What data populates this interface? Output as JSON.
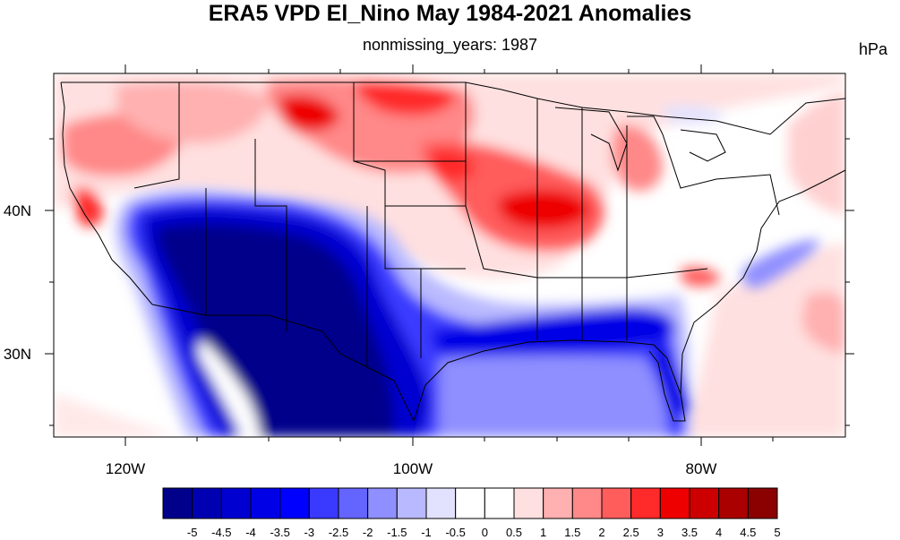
{
  "title": "ERA5 VPD El_Nino May 1984-2021 Anomalies",
  "subtitle": "nonmissing_years: 1987",
  "units": "hPa",
  "map": {
    "region": "Contiguous United States",
    "projection": "lat-lon",
    "lon_range": [
      -130,
      -72.5
    ],
    "lat_range": [
      24.5,
      49.5
    ],
    "x_tick_labels": [
      "120W",
      "100W",
      "80W"
    ],
    "y_tick_labels": [
      "40N",
      "30N"
    ]
  },
  "colorbar": {
    "levels": [
      "-5",
      "-4.5",
      "-4",
      "-3.5",
      "-3",
      "-2.5",
      "-2",
      "-1.5",
      "-1",
      "-0.5",
      "0",
      "0.5",
      "1",
      "1.5",
      "2",
      "2.5",
      "3",
      "3.5",
      "4",
      "4.5",
      "5"
    ],
    "colors": [
      "#00008b",
      "#0000b3",
      "#0000d0",
      "#0000e6",
      "#0000ff",
      "#3a3aff",
      "#6464ff",
      "#8f8fff",
      "#b9b9ff",
      "#e2e2ff",
      "#ffffff",
      "#ffffff",
      "#ffe0e0",
      "#ffb0b0",
      "#ff8888",
      "#ff5c5c",
      "#ff2a2a",
      "#ee0000",
      "#cc0000",
      "#aa0000",
      "#8b0000"
    ]
  },
  "anomaly_regions": [
    {
      "name": "Southwest / Mexico",
      "level": -5,
      "color": "#00008b"
    },
    {
      "name": "Gulf Coast",
      "level": -3,
      "color": "#0000e6"
    },
    {
      "name": "Florida",
      "level": -3,
      "color": "#0000e6"
    },
    {
      "name": "Gulf of Mexico",
      "level": -1.5,
      "color": "#b9b9ff"
    },
    {
      "name": "Northern Plains",
      "level": 3,
      "color": "#ee0000"
    },
    {
      "name": "Iowa / Illinois",
      "level": 3.5,
      "color": "#ee0000"
    },
    {
      "name": "Michigan",
      "level": 2,
      "color": "#ff5c5c"
    },
    {
      "name": "Pacific Northwest",
      "level": 2,
      "color": "#ff5c5c"
    },
    {
      "name": "Central California",
      "level": 3.5,
      "color": "#ee0000"
    },
    {
      "name": "Western Atlantic",
      "level": 1,
      "color": "#ffb0b0"
    }
  ]
}
